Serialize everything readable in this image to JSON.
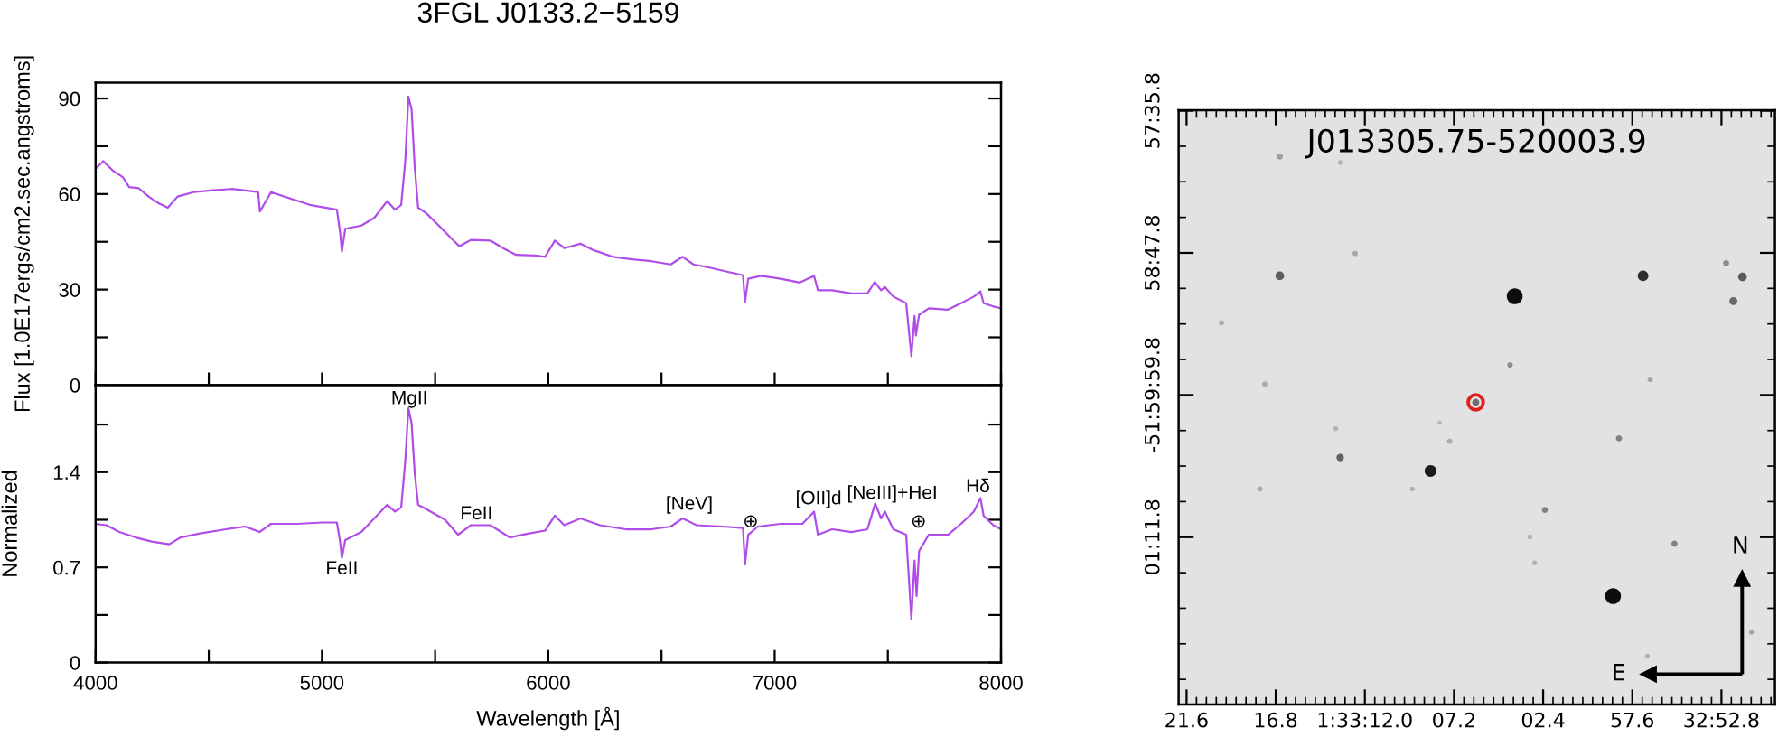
{
  "chart_data": [
    {
      "type": "line",
      "title": "3FGL J0133.2−5159",
      "ylabel": "Flux [1.0E17ergs/cm2.sec.angstroms]",
      "xlim": [
        4000,
        8000
      ],
      "ylim": [
        0,
        95
      ],
      "xticks": [
        4000,
        4500,
        5000,
        5500,
        6000,
        6500,
        7000,
        7500,
        8000
      ],
      "yticks": [
        0,
        {
          "value": 15,
          "label": null
        },
        30,
        {
          "value": 45,
          "label": null
        },
        60,
        {
          "value": 75,
          "label": null
        },
        90
      ],
      "tick_labels": "y",
      "series": [
        {
          "color": "#b04de8",
          "x": [
            4000,
            4034,
            4077,
            4120,
            4148,
            4191,
            4234,
            4276,
            4319,
            4362,
            4433,
            4519,
            4604,
            4718,
            4726,
            4775,
            4860,
            4946,
            5031,
            5066,
            5080,
            5088,
            5103,
            5174,
            5231,
            5288,
            5322,
            5350,
            5368,
            5382,
            5396,
            5410,
            5425,
            5459,
            5516,
            5573,
            5607,
            5658,
            5744,
            5800,
            5858,
            5943,
            5986,
            6029,
            6071,
            6142,
            6199,
            6285,
            6370,
            6456,
            6541,
            6593,
            6641,
            6712,
            6798,
            6860,
            6869,
            6883,
            6940,
            7026,
            7111,
            7174,
            7191,
            7254,
            7339,
            7410,
            7442,
            7470,
            7487,
            7524,
            7581,
            7604,
            7618,
            7624,
            7638,
            7681,
            7766,
            7823,
            7880,
            7909,
            7923,
            7966,
            8000
          ],
          "values": [
            67.9,
            70.3,
            67.3,
            65.3,
            62.2,
            61.8,
            59.2,
            57.2,
            55.7,
            59.2,
            60.6,
            61.2,
            61.6,
            60.6,
            54.5,
            60.6,
            58.6,
            56.6,
            55.5,
            55.1,
            48.0,
            42.0,
            49.1,
            50.1,
            52.5,
            57.8,
            55.1,
            56.6,
            70.3,
            90.6,
            86.6,
            68.3,
            55.7,
            54.1,
            50.1,
            46.0,
            43.6,
            45.6,
            45.4,
            43.0,
            40.9,
            40.7,
            40.3,
            45.4,
            43.0,
            44.4,
            42.4,
            40.3,
            39.5,
            38.9,
            37.9,
            40.3,
            37.9,
            36.9,
            35.5,
            34.5,
            26.1,
            33.4,
            34.3,
            33.4,
            32.2,
            34.3,
            29.8,
            29.8,
            28.8,
            28.8,
            32.4,
            29.8,
            30.8,
            27.8,
            25.7,
            9.1,
            21.7,
            15.6,
            22.1,
            24.1,
            23.7,
            25.7,
            27.8,
            29.4,
            25.7,
            24.7,
            24.1
          ]
        }
      ]
    },
    {
      "type": "line",
      "xlabel": "Wavelength [Å]",
      "ylabel": "Normalized",
      "xlim": [
        4000,
        8000
      ],
      "ylim": [
        0,
        2.04
      ],
      "xticks": [
        4000,
        {
          "value": 4500,
          "label": null
        },
        5000,
        {
          "value": 5500,
          "label": null
        },
        6000,
        {
          "value": 6500,
          "label": null
        },
        7000,
        {
          "value": 7500,
          "label": null
        },
        8000
      ],
      "yticks": [
        0,
        {
          "value": 0.35,
          "label": null
        },
        0.7,
        {
          "value": 1.05,
          "label": null
        },
        1.4,
        {
          "value": 1.75,
          "label": null
        }
      ],
      "annotations": [
        {
          "text": "MgII",
          "x": 5382,
          "y": 1.87
        },
        {
          "text": "FeII",
          "x": 5088,
          "y": 0.77
        },
        {
          "text": "FeII",
          "x": 5658,
          "y": 1.01
        },
        {
          "text": "[NeV]",
          "x": 6593,
          "y": 1.06
        },
        {
          "text": "⊕",
          "x": 6883,
          "y": 0.94
        },
        {
          "text": "[OII]d",
          "x": 7174,
          "y": 1.11
        },
        {
          "text": "[NeIII]+HeI",
          "x": 7444,
          "y": 1.17
        },
        {
          "text": "⊕",
          "x": 7638,
          "y": 0.82
        },
        {
          "text": "Hδ",
          "x": 7909,
          "y": 1.21
        }
      ],
      "series": [
        {
          "color": "#b04de8",
          "x": [
            4000,
            4048,
            4105,
            4177,
            4248,
            4325,
            4376,
            4462,
            4576,
            4661,
            4724,
            4775,
            4889,
            5003,
            5066,
            5080,
            5088,
            5103,
            5174,
            5231,
            5288,
            5322,
            5350,
            5368,
            5382,
            5396,
            5410,
            5425,
            5459,
            5544,
            5601,
            5658,
            5744,
            5829,
            5915,
            5986,
            6029,
            6071,
            6142,
            6228,
            6342,
            6456,
            6541,
            6593,
            6655,
            6769,
            6860,
            6869,
            6883,
            6926,
            7026,
            7122,
            7174,
            7191,
            7254,
            7339,
            7410,
            7444,
            7470,
            7487,
            7524,
            7581,
            7604,
            7618,
            7627,
            7638,
            7681,
            7766,
            7823,
            7880,
            7909,
            7923,
            7966,
            8000
          ],
          "values": [
            1.02,
            1.01,
            0.96,
            0.92,
            0.89,
            0.87,
            0.92,
            0.95,
            0.98,
            1.0,
            0.96,
            1.02,
            1.02,
            1.03,
            1.03,
            0.89,
            0.77,
            0.9,
            0.96,
            1.06,
            1.16,
            1.11,
            1.14,
            1.48,
            1.87,
            1.76,
            1.39,
            1.16,
            1.13,
            1.05,
            0.94,
            1.01,
            1.01,
            0.92,
            0.95,
            0.97,
            1.08,
            1.01,
            1.06,
            1.01,
            0.98,
            0.98,
            1.0,
            1.06,
            1.01,
            1.0,
            0.99,
            0.72,
            0.94,
            1.0,
            1.02,
            1.02,
            1.11,
            0.94,
            0.98,
            0.96,
            0.98,
            1.17,
            1.06,
            1.11,
            0.98,
            0.94,
            0.32,
            0.75,
            0.49,
            0.82,
            0.94,
            0.94,
            1.02,
            1.11,
            1.21,
            1.08,
            1.01,
            0.98
          ]
        }
      ]
    },
    {
      "type": "other",
      "title": "J013305.75-520003.9",
      "categories": [
        "21.6",
        "16.8",
        "1:33:12.0",
        "07.2",
        "02.4",
        "57.6",
        "32:52.8"
      ],
      "y_categories": [
        "57:35.8",
        "58:47.8",
        "-51:59:59.8",
        "01:11.8"
      ],
      "annotations": [
        "N",
        "E"
      ]
    }
  ]
}
